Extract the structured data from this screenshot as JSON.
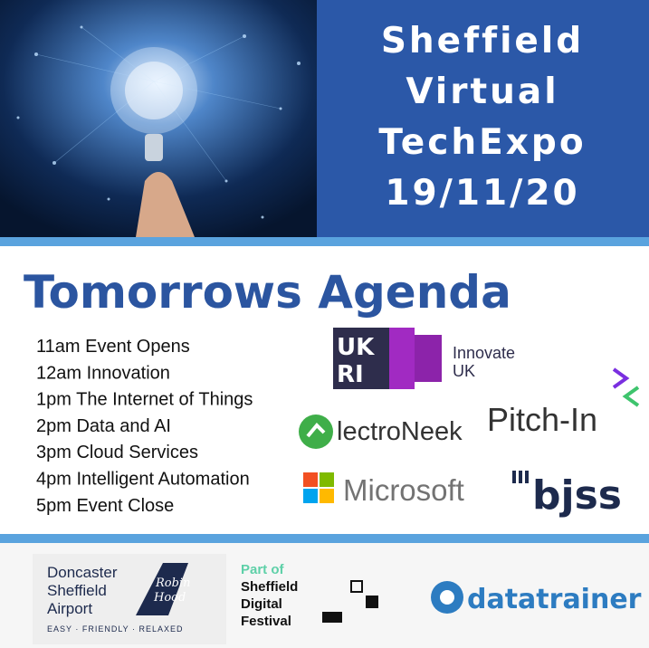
{
  "header": {
    "title_lines": [
      "Sheffield",
      "Virtual",
      "TechExpo",
      "19/11/20"
    ]
  },
  "agenda": {
    "title": "Tomorrows Agenda",
    "items": [
      "11am Event Opens",
      "12am Innovation",
      "1pm The Internet of Things",
      "2pm Data and AI",
      "3pm Cloud Services",
      "4pm Intelligent Automation",
      "5pm Event Close"
    ]
  },
  "sponsors": {
    "ukri": [
      "UK",
      "RI"
    ],
    "innovate_uk": [
      "Innovate",
      "UK"
    ],
    "pitch_in": "Pitch-In",
    "electroneek": "lectroNeek",
    "microsoft": "Microsoft",
    "bjss": "bjss"
  },
  "footer": {
    "airport": {
      "lines": [
        "Doncaster",
        "Sheffield",
        "Airport"
      ],
      "script": [
        "Robin",
        "Hood"
      ],
      "tagline": "EASY · FRIENDLY · RELAXED"
    },
    "festival": {
      "part_of": "Part of",
      "lines": [
        "Sheffield",
        "Digital",
        "Festival"
      ]
    },
    "datatrainer": "datatrainer"
  }
}
